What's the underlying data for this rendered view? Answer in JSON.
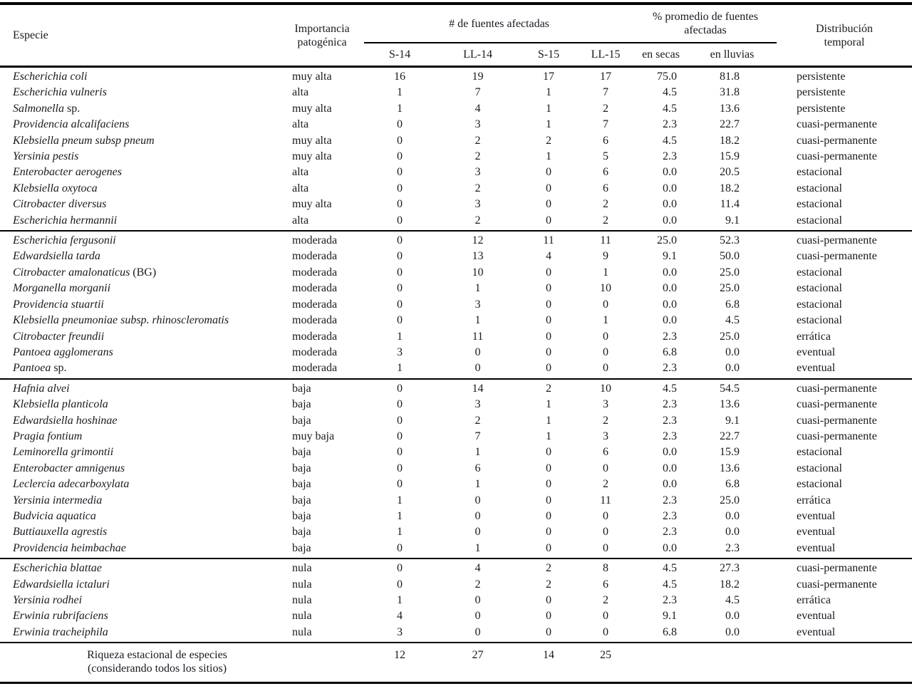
{
  "colors": {
    "ink": "#191922",
    "rule": "#000000",
    "background": "#ffffff"
  },
  "table": {
    "headers": {
      "especie": "Especie",
      "importancia": "Importancia patogénica",
      "fuentes": "# de fuentes afectadas",
      "promedio": "% promedio de fuentes afectadas",
      "distribucion": "Distribución temporal",
      "seasons": [
        "S-14",
        "LL-14",
        "S-15",
        "LL-15"
      ],
      "pct": [
        "en secas",
        "en lluvias"
      ]
    },
    "groups": [
      {
        "rows": [
          {
            "name": "Escherichia coli",
            "suffix": "",
            "importancia": "muy alta",
            "s14": "16",
            "ll14": "19",
            "s15": "17",
            "ll15": "17",
            "secas": "75.0",
            "lluvias": "81.8",
            "dist": "persistente"
          },
          {
            "name": "Escherichia vulneris",
            "suffix": "",
            "importancia": "alta",
            "s14": "1",
            "ll14": "7",
            "s15": "1",
            "ll15": "7",
            "secas": "4.5",
            "lluvias": "31.8",
            "dist": "persistente"
          },
          {
            "name": "Salmonella",
            "suffix": " sp.",
            "importancia": "muy alta",
            "s14": "1",
            "ll14": "4",
            "s15": "1",
            "ll15": "2",
            "secas": "4.5",
            "lluvias": "13.6",
            "dist": "persistente"
          },
          {
            "name": "Providencia alcalifaciens",
            "suffix": "",
            "importancia": "alta",
            "s14": "0",
            "ll14": "3",
            "s15": "1",
            "ll15": "7",
            "secas": "2.3",
            "lluvias": "22.7",
            "dist": "cuasi-permanente"
          },
          {
            "name": "Klebsiella pneum subsp pneum",
            "suffix": "",
            "importancia": "muy alta",
            "s14": "0",
            "ll14": "2",
            "s15": "2",
            "ll15": "6",
            "secas": "4.5",
            "lluvias": "18.2",
            "dist": "cuasi-permanente"
          },
          {
            "name": "Yersinia pestis",
            "suffix": "",
            "importancia": "muy alta",
            "s14": "0",
            "ll14": "2",
            "s15": "1",
            "ll15": "5",
            "secas": "2.3",
            "lluvias": "15.9",
            "dist": "cuasi-permanente"
          },
          {
            "name": "Enterobacter aerogenes",
            "suffix": "",
            "importancia": "alta",
            "s14": "0",
            "ll14": "3",
            "s15": "0",
            "ll15": "6",
            "secas": "0.0",
            "lluvias": "20.5",
            "dist": "estacional"
          },
          {
            "name": "Klebsiella oxytoca",
            "suffix": "",
            "importancia": "alta",
            "s14": "0",
            "ll14": "2",
            "s15": "0",
            "ll15": "6",
            "secas": "0.0",
            "lluvias": "18.2",
            "dist": "estacional"
          },
          {
            "name": "Citrobacter diversus",
            "suffix": "",
            "importancia": "muy alta",
            "s14": "0",
            "ll14": "3",
            "s15": "0",
            "ll15": "2",
            "secas": "0.0",
            "lluvias": "11.4",
            "dist": "estacional"
          },
          {
            "name": "Escherichia hermannii",
            "suffix": "",
            "importancia": "alta",
            "s14": "0",
            "ll14": "2",
            "s15": "0",
            "ll15": "2",
            "secas": "0.0",
            "lluvias": "9.1",
            "dist": "estacional"
          }
        ]
      },
      {
        "rows": [
          {
            "name": "Escherichia fergusonii",
            "suffix": "",
            "importancia": "moderada",
            "s14": "0",
            "ll14": "12",
            "s15": "11",
            "ll15": "11",
            "secas": "25.0",
            "lluvias": "52.3",
            "dist": "cuasi-permanente"
          },
          {
            "name": "Edwardsiella tarda",
            "suffix": "",
            "importancia": "moderada",
            "s14": "0",
            "ll14": "13",
            "s15": "4",
            "ll15": "9",
            "secas": "9.1",
            "lluvias": "50.0",
            "dist": "cuasi-permanente"
          },
          {
            "name": "Citrobacter amalonaticus",
            "suffix": " (BG)",
            "importancia": "moderada",
            "s14": "0",
            "ll14": "10",
            "s15": "0",
            "ll15": "1",
            "secas": "0.0",
            "lluvias": "25.0",
            "dist": "estacional"
          },
          {
            "name": "Morganella morganii",
            "suffix": "",
            "importancia": "moderada",
            "s14": "0",
            "ll14": "1",
            "s15": "0",
            "ll15": "10",
            "secas": "0.0",
            "lluvias": "25.0",
            "dist": "estacional"
          },
          {
            "name": "Providencia stuartii",
            "suffix": "",
            "importancia": "moderada",
            "s14": "0",
            "ll14": "3",
            "s15": "0",
            "ll15": "0",
            "secas": "0.0",
            "lluvias": "6.8",
            "dist": "estacional"
          },
          {
            "name": "Klebsiella pneumoniae subsp. rhinoscleromatis",
            "suffix": "",
            "importancia": "moderada",
            "s14": "0",
            "ll14": "1",
            "s15": "0",
            "ll15": "1",
            "secas": "0.0",
            "lluvias": "4.5",
            "dist": "estacional"
          },
          {
            "name": "Citrobacter freundii",
            "suffix": "",
            "importancia": "moderada",
            "s14": "1",
            "ll14": "11",
            "s15": "0",
            "ll15": "0",
            "secas": "2.3",
            "lluvias": "25.0",
            "dist": "errática"
          },
          {
            "name": "Pantoea agglomerans",
            "suffix": "",
            "importancia": "moderada",
            "s14": "3",
            "ll14": "0",
            "s15": "0",
            "ll15": "0",
            "secas": "6.8",
            "lluvias": "0.0",
            "dist": "eventual"
          },
          {
            "name": "Pantoea",
            "suffix": " sp.",
            "importancia": "moderada",
            "s14": "1",
            "ll14": "0",
            "s15": "0",
            "ll15": "0",
            "secas": "2.3",
            "lluvias": "0.0",
            "dist": "eventual"
          }
        ]
      },
      {
        "rows": [
          {
            "name": "Hafnia alvei",
            "suffix": "",
            "importancia": "baja",
            "s14": "0",
            "ll14": "14",
            "s15": "2",
            "ll15": "10",
            "secas": "4.5",
            "lluvias": "54.5",
            "dist": "cuasi-permanente"
          },
          {
            "name": "Klebsiella planticola",
            "suffix": "",
            "importancia": "baja",
            "s14": "0",
            "ll14": "3",
            "s15": "1",
            "ll15": "3",
            "secas": "2.3",
            "lluvias": "13.6",
            "dist": "cuasi-permanente"
          },
          {
            "name": "Edwardsiella hoshinae",
            "suffix": "",
            "importancia": "baja",
            "s14": "0",
            "ll14": "2",
            "s15": "1",
            "ll15": "2",
            "secas": "2.3",
            "lluvias": "9.1",
            "dist": "cuasi-permanente"
          },
          {
            "name": "Pragia fontium",
            "suffix": "",
            "importancia": "muy baja",
            "s14": "0",
            "ll14": "7",
            "s15": "1",
            "ll15": "3",
            "secas": "2.3",
            "lluvias": "22.7",
            "dist": "cuasi-permanente"
          },
          {
            "name": "Leminorella grimontii",
            "suffix": "",
            "importancia": "baja",
            "s14": "0",
            "ll14": "1",
            "s15": "0",
            "ll15": "6",
            "secas": "0.0",
            "lluvias": "15.9",
            "dist": "estacional"
          },
          {
            "name": "Enterobacter amnigenus",
            "suffix": "",
            "importancia": "baja",
            "s14": "0",
            "ll14": "6",
            "s15": "0",
            "ll15": "0",
            "secas": "0.0",
            "lluvias": "13.6",
            "dist": "estacional"
          },
          {
            "name": "Leclercia adecarboxylata",
            "suffix": "",
            "importancia": "baja",
            "s14": "0",
            "ll14": "1",
            "s15": "0",
            "ll15": "2",
            "secas": "0.0",
            "lluvias": "6.8",
            "dist": "estacional"
          },
          {
            "name": "Yersinia intermedia",
            "suffix": "",
            "importancia": "baja",
            "s14": "1",
            "ll14": "0",
            "s15": "0",
            "ll15": "11",
            "secas": "2.3",
            "lluvias": "25.0",
            "dist": "errática"
          },
          {
            "name": "Budvicia aquatica",
            "suffix": "",
            "importancia": "baja",
            "s14": "1",
            "ll14": "0",
            "s15": "0",
            "ll15": "0",
            "secas": "2.3",
            "lluvias": "0.0",
            "dist": "eventual"
          },
          {
            "name": "Buttiauxella agrestis",
            "suffix": "",
            "importancia": "baja",
            "s14": "1",
            "ll14": "0",
            "s15": "0",
            "ll15": "0",
            "secas": "2.3",
            "lluvias": "0.0",
            "dist": "eventual"
          },
          {
            "name": "Providencia heimbachae",
            "suffix": "",
            "importancia": "baja",
            "s14": "0",
            "ll14": "1",
            "s15": "0",
            "ll15": "0",
            "secas": "0.0",
            "lluvias": "2.3",
            "dist": "eventual"
          }
        ]
      },
      {
        "rows": [
          {
            "name": "Escherichia blattae",
            "suffix": "",
            "importancia": "nula",
            "s14": "0",
            "ll14": "4",
            "s15": "2",
            "ll15": "8",
            "secas": "4.5",
            "lluvias": "27.3",
            "dist": "cuasi-permanente"
          },
          {
            "name": "Edwardsiella ictaluri",
            "suffix": "",
            "importancia": "nula",
            "s14": "0",
            "ll14": "2",
            "s15": "2",
            "ll15": "6",
            "secas": "4.5",
            "lluvias": "18.2",
            "dist": "cuasi-permanente"
          },
          {
            "name": "Yersinia rodhei",
            "suffix": "",
            "importancia": "nula",
            "s14": "1",
            "ll14": "0",
            "s15": "0",
            "ll15": "2",
            "secas": "2.3",
            "lluvias": "4.5",
            "dist": "errática"
          },
          {
            "name": "Erwinia rubrifaciens",
            "suffix": "",
            "importancia": "nula",
            "s14": "4",
            "ll14": "0",
            "s15": "0",
            "ll15": "0",
            "secas": "9.1",
            "lluvias": "0.0",
            "dist": "eventual"
          },
          {
            "name": "Erwinia tracheiphila",
            "suffix": "",
            "importancia": "nula",
            "s14": "3",
            "ll14": "0",
            "s15": "0",
            "ll15": "0",
            "secas": "6.8",
            "lluvias": "0.0",
            "dist": "eventual"
          }
        ]
      }
    ],
    "footer": {
      "label_line1": "Riqueza estacional de especies",
      "label_line2": "(considerando todos los sitios)",
      "values": [
        "12",
        "27",
        "14",
        "25"
      ]
    }
  }
}
